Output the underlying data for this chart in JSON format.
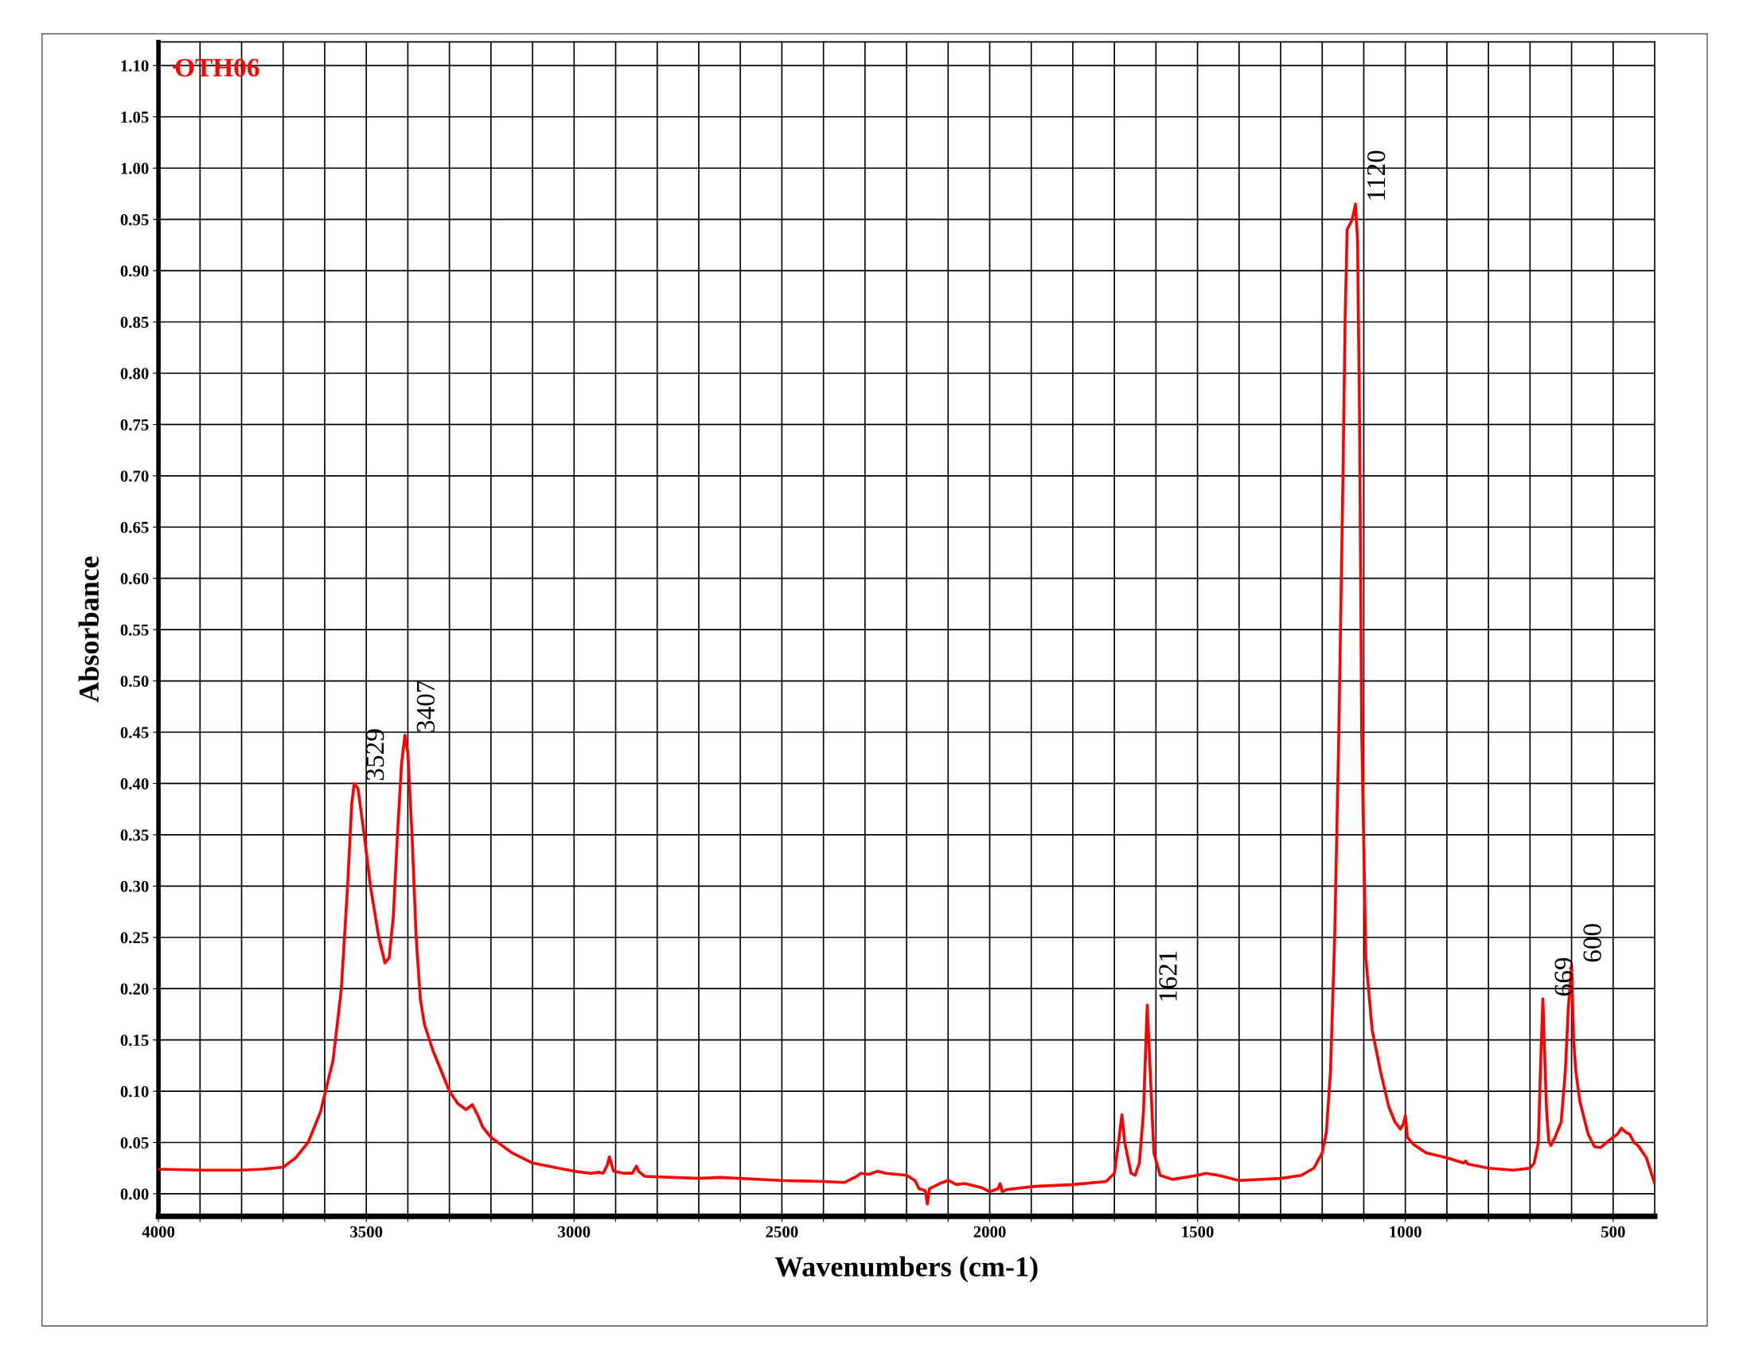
{
  "chart_data": {
    "type": "line",
    "xlabel": "Wavenumbers (cm-1)",
    "ylabel": "Absorbance",
    "xlim": [
      4000,
      400
    ],
    "ylim": [
      -0.022,
      1.123
    ],
    "xticks": [
      4000,
      {
        "value": 3900,
        "label": null
      },
      {
        "value": 3800,
        "label": null
      },
      {
        "value": 3700,
        "label": null
      },
      {
        "value": 3600,
        "label": null
      },
      3500,
      {
        "value": 3400,
        "label": null
      },
      {
        "value": 3300,
        "label": null
      },
      {
        "value": 3200,
        "label": null
      },
      {
        "value": 3100,
        "label": null
      },
      3000,
      {
        "value": 2900,
        "label": null
      },
      {
        "value": 2800,
        "label": null
      },
      {
        "value": 2700,
        "label": null
      },
      {
        "value": 2600,
        "label": null
      },
      2500,
      {
        "value": 2400,
        "label": null
      },
      {
        "value": 2300,
        "label": null
      },
      {
        "value": 2200,
        "label": null
      },
      {
        "value": 2100,
        "label": null
      },
      2000,
      {
        "value": 1900,
        "label": null
      },
      {
        "value": 1800,
        "label": null
      },
      {
        "value": 1700,
        "label": null
      },
      {
        "value": 1600,
        "label": null
      },
      1500,
      {
        "value": 1400,
        "label": null
      },
      {
        "value": 1300,
        "label": null
      },
      {
        "value": 1200,
        "label": null
      },
      {
        "value": 1100,
        "label": null
      },
      1000,
      {
        "value": 900,
        "label": null
      },
      {
        "value": 800,
        "label": null
      },
      {
        "value": 700,
        "label": null
      },
      {
        "value": 600,
        "label": null
      },
      500
    ],
    "yticks": [
      {
        "value": 0,
        "label": "0.00"
      },
      {
        "value": 0.05,
        "label": "0.05"
      },
      {
        "value": 0.1,
        "label": "0.10"
      },
      {
        "value": 0.15,
        "label": "0.15"
      },
      {
        "value": 0.2,
        "label": "0.20"
      },
      {
        "value": 0.25,
        "label": "0.25"
      },
      {
        "value": 0.3,
        "label": "0.30"
      },
      {
        "value": 0.35,
        "label": "0.35"
      },
      {
        "value": 0.4,
        "label": "0.40"
      },
      {
        "value": 0.45,
        "label": "0.45"
      },
      {
        "value": 0.5,
        "label": "0.50"
      },
      {
        "value": 0.55,
        "label": "0.55"
      },
      {
        "value": 0.6,
        "label": "0.60"
      },
      {
        "value": 0.65,
        "label": "0.65"
      },
      {
        "value": 0.7,
        "label": "0.70"
      },
      {
        "value": 0.75,
        "label": "0.75"
      },
      {
        "value": 0.8,
        "label": "0.80"
      },
      {
        "value": 0.85,
        "label": "0.85"
      },
      {
        "value": 0.9,
        "label": "0.90"
      },
      {
        "value": 0.95,
        "label": "0.95"
      },
      {
        "value": 1.0,
        "label": "1.00"
      },
      {
        "value": 1.05,
        "label": "1.05"
      },
      {
        "value": 1.1,
        "label": "1.10"
      }
    ],
    "grid": true,
    "legend": "top left",
    "series": [
      {
        "name": "OTH06",
        "color": "#ff0000",
        "x": [
          4000,
          3900,
          3800,
          3750,
          3700,
          3670,
          3640,
          3610,
          3580,
          3560,
          3545,
          3535,
          3529,
          3520,
          3505,
          3490,
          3470,
          3455,
          3445,
          3435,
          3425,
          3415,
          3407,
          3400,
          3390,
          3380,
          3370,
          3360,
          3340,
          3320,
          3300,
          3280,
          3260,
          3245,
          3230,
          3220,
          3200,
          3150,
          3100,
          3050,
          3000,
          2960,
          2940,
          2930,
          2920,
          2915,
          2905,
          2880,
          2860,
          2850,
          2845,
          2830,
          2700,
          2650,
          2500,
          2400,
          2350,
          2330,
          2320,
          2310,
          2290,
          2270,
          2250,
          2200,
          2180,
          2170,
          2155,
          2150,
          2145,
          2120,
          2100,
          2080,
          2060,
          2020,
          2000,
          1980,
          1975,
          1970,
          1960,
          1900,
          1800,
          1720,
          1700,
          1690,
          1682,
          1675,
          1660,
          1650,
          1640,
          1630,
          1624,
          1621,
          1615,
          1605,
          1590,
          1560,
          1500,
          1480,
          1450,
          1400,
          1300,
          1250,
          1220,
          1200,
          1190,
          1180,
          1170,
          1160,
          1150,
          1145,
          1140,
          1130,
          1125,
          1120,
          1115,
          1110,
          1105,
          1095,
          1080,
          1060,
          1040,
          1025,
          1012,
          1005,
          1000,
          995,
          980,
          950,
          900,
          860,
          855,
          850,
          800,
          740,
          700,
          690,
          680,
          675,
          670,
          669,
          666,
          660,
          655,
          650,
          640,
          625,
          615,
          608,
          600,
          595,
          590,
          580,
          560,
          545,
          530,
          510,
          500,
          490,
          480,
          470,
          460,
          450,
          440,
          420,
          400
        ],
        "values": [
          0.024,
          0.023,
          0.023,
          0.024,
          0.026,
          0.035,
          0.05,
          0.08,
          0.13,
          0.2,
          0.3,
          0.38,
          0.4,
          0.395,
          0.35,
          0.3,
          0.25,
          0.225,
          0.23,
          0.27,
          0.35,
          0.42,
          0.447,
          0.43,
          0.35,
          0.25,
          0.19,
          0.165,
          0.14,
          0.12,
          0.1,
          0.088,
          0.082,
          0.087,
          0.075,
          0.065,
          0.055,
          0.04,
          0.03,
          0.026,
          0.022,
          0.02,
          0.021,
          0.02,
          0.028,
          0.036,
          0.022,
          0.02,
          0.02,
          0.027,
          0.022,
          0.017,
          0.015,
          0.016,
          0.013,
          0.012,
          0.011,
          0.015,
          0.017,
          0.02,
          0.019,
          0.022,
          0.02,
          0.018,
          0.013,
          0.005,
          0.003,
          -0.01,
          0.005,
          0.01,
          0.013,
          0.009,
          0.01,
          0.006,
          0.002,
          0.005,
          0.01,
          0.002,
          0.004,
          0.007,
          0.009,
          0.012,
          0.02,
          0.05,
          0.077,
          0.05,
          0.02,
          0.018,
          0.03,
          0.08,
          0.15,
          0.184,
          0.13,
          0.04,
          0.018,
          0.014,
          0.018,
          0.02,
          0.018,
          0.013,
          0.015,
          0.018,
          0.025,
          0.04,
          0.06,
          0.12,
          0.25,
          0.45,
          0.7,
          0.85,
          0.94,
          0.948,
          0.955,
          0.965,
          0.93,
          0.75,
          0.45,
          0.23,
          0.16,
          0.12,
          0.085,
          0.07,
          0.063,
          0.068,
          0.076,
          0.055,
          0.048,
          0.04,
          0.035,
          0.03,
          0.032,
          0.029,
          0.025,
          0.023,
          0.025,
          0.03,
          0.05,
          0.12,
          0.18,
          0.19,
          0.15,
          0.08,
          0.052,
          0.047,
          0.055,
          0.07,
          0.12,
          0.18,
          0.223,
          0.15,
          0.12,
          0.09,
          0.058,
          0.046,
          0.045,
          0.052,
          0.055,
          0.058,
          0.064,
          0.06,
          0.058,
          0.05,
          0.047,
          0.035,
          0.01
        ]
      }
    ],
    "annotations": [
      {
        "text": "3529",
        "x": 3529,
        "y": 0.4
      },
      {
        "text": "3407",
        "x": 3407,
        "y": 0.447
      },
      {
        "text": "1621",
        "x": 1621,
        "y": 0.184
      },
      {
        "text": "1120",
        "x": 1120,
        "y": 0.965
      },
      {
        "text": "669",
        "x": 669,
        "y": 0.19
      },
      {
        "text": "600",
        "x": 600,
        "y": 0.223
      }
    ]
  }
}
